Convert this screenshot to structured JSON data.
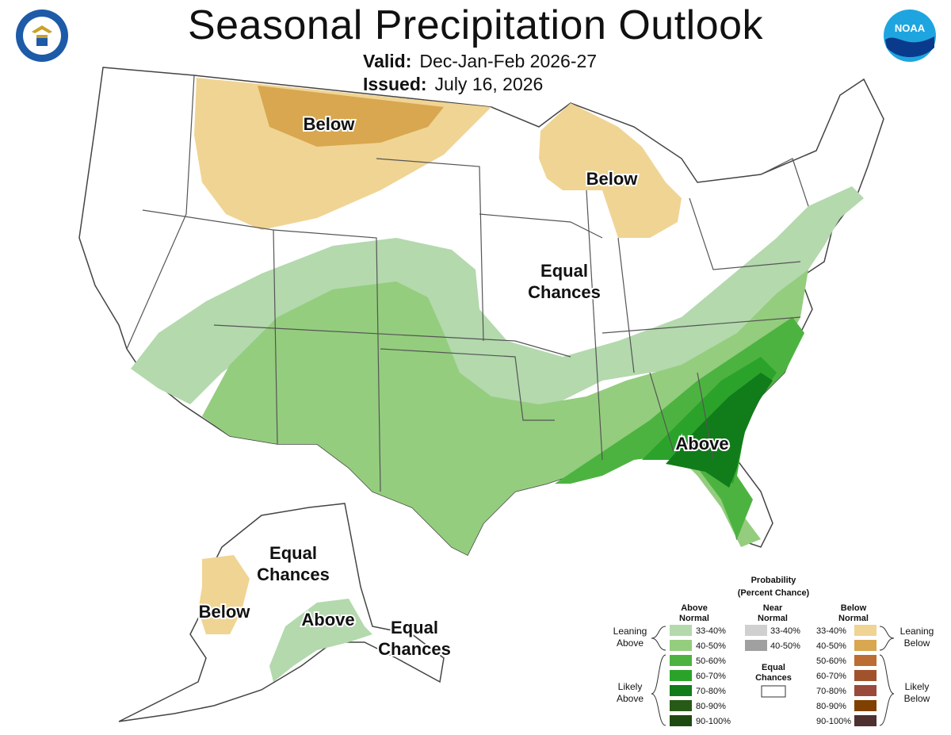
{
  "title": "Seasonal Precipitation Outlook",
  "valid": {
    "label": "Valid:",
    "value": "Dec-Jan-Feb 2026-27"
  },
  "issued": {
    "label": "Issued:",
    "value": "July 16, 2026"
  },
  "logos": {
    "left": "department-of-commerce-seal",
    "right_text": "NOAA"
  },
  "map_labels": {
    "below_northwest": "Below",
    "below_great_lakes": "Below",
    "equal_chances_midwest_1": "Equal",
    "equal_chances_midwest_2": "Chances",
    "above_southeast": "Above",
    "ak_equal_1": "Equal",
    "ak_equal_2": "Chances",
    "ak_below": "Below",
    "ak_above": "Above",
    "ak_se_equal_1": "Equal",
    "ak_se_equal_2": "Chances"
  },
  "colors": {
    "above_33_40": "#b3d9ad",
    "above_40_50": "#94cd7e",
    "above_50_60": "#4db340",
    "above_60_70": "#2ba32b",
    "above_70_80": "#117c1a",
    "above_80_90": "#285a17",
    "above_90_100": "#1e4a12",
    "near_33_40": "#d0d0d0",
    "near_40_50": "#a0a0a0",
    "below_33_40": "#f0d493",
    "below_40_50": "#d8a750",
    "below_50_60": "#bb6d33",
    "below_60_70": "#a0522d",
    "below_70_80": "#9a4a3a",
    "below_80_90": "#804000",
    "below_90_100": "#4d302f"
  },
  "legend": {
    "title_1": "Probability",
    "title_2": "(Percent Chance)",
    "above_head_1": "Above",
    "above_head_2": "Normal",
    "near_head_1": "Near",
    "near_head_2": "Normal",
    "below_head_1": "Below",
    "below_head_2": "Normal",
    "equal_1": "Equal",
    "equal_2": "Chances",
    "leaning_above_1": "Leaning",
    "leaning_above_2": "Above",
    "likely_above_1": "Likely",
    "likely_above_2": "Above",
    "leaning_below_1": "Leaning",
    "leaning_below_2": "Below",
    "likely_below_1": "Likely",
    "likely_below_2": "Below",
    "pcts": [
      "33-40%",
      "40-50%",
      "50-60%",
      "60-70%",
      "70-80%",
      "80-90%",
      "90-100%"
    ],
    "near_pcts": [
      "33-40%",
      "40-50%"
    ]
  }
}
